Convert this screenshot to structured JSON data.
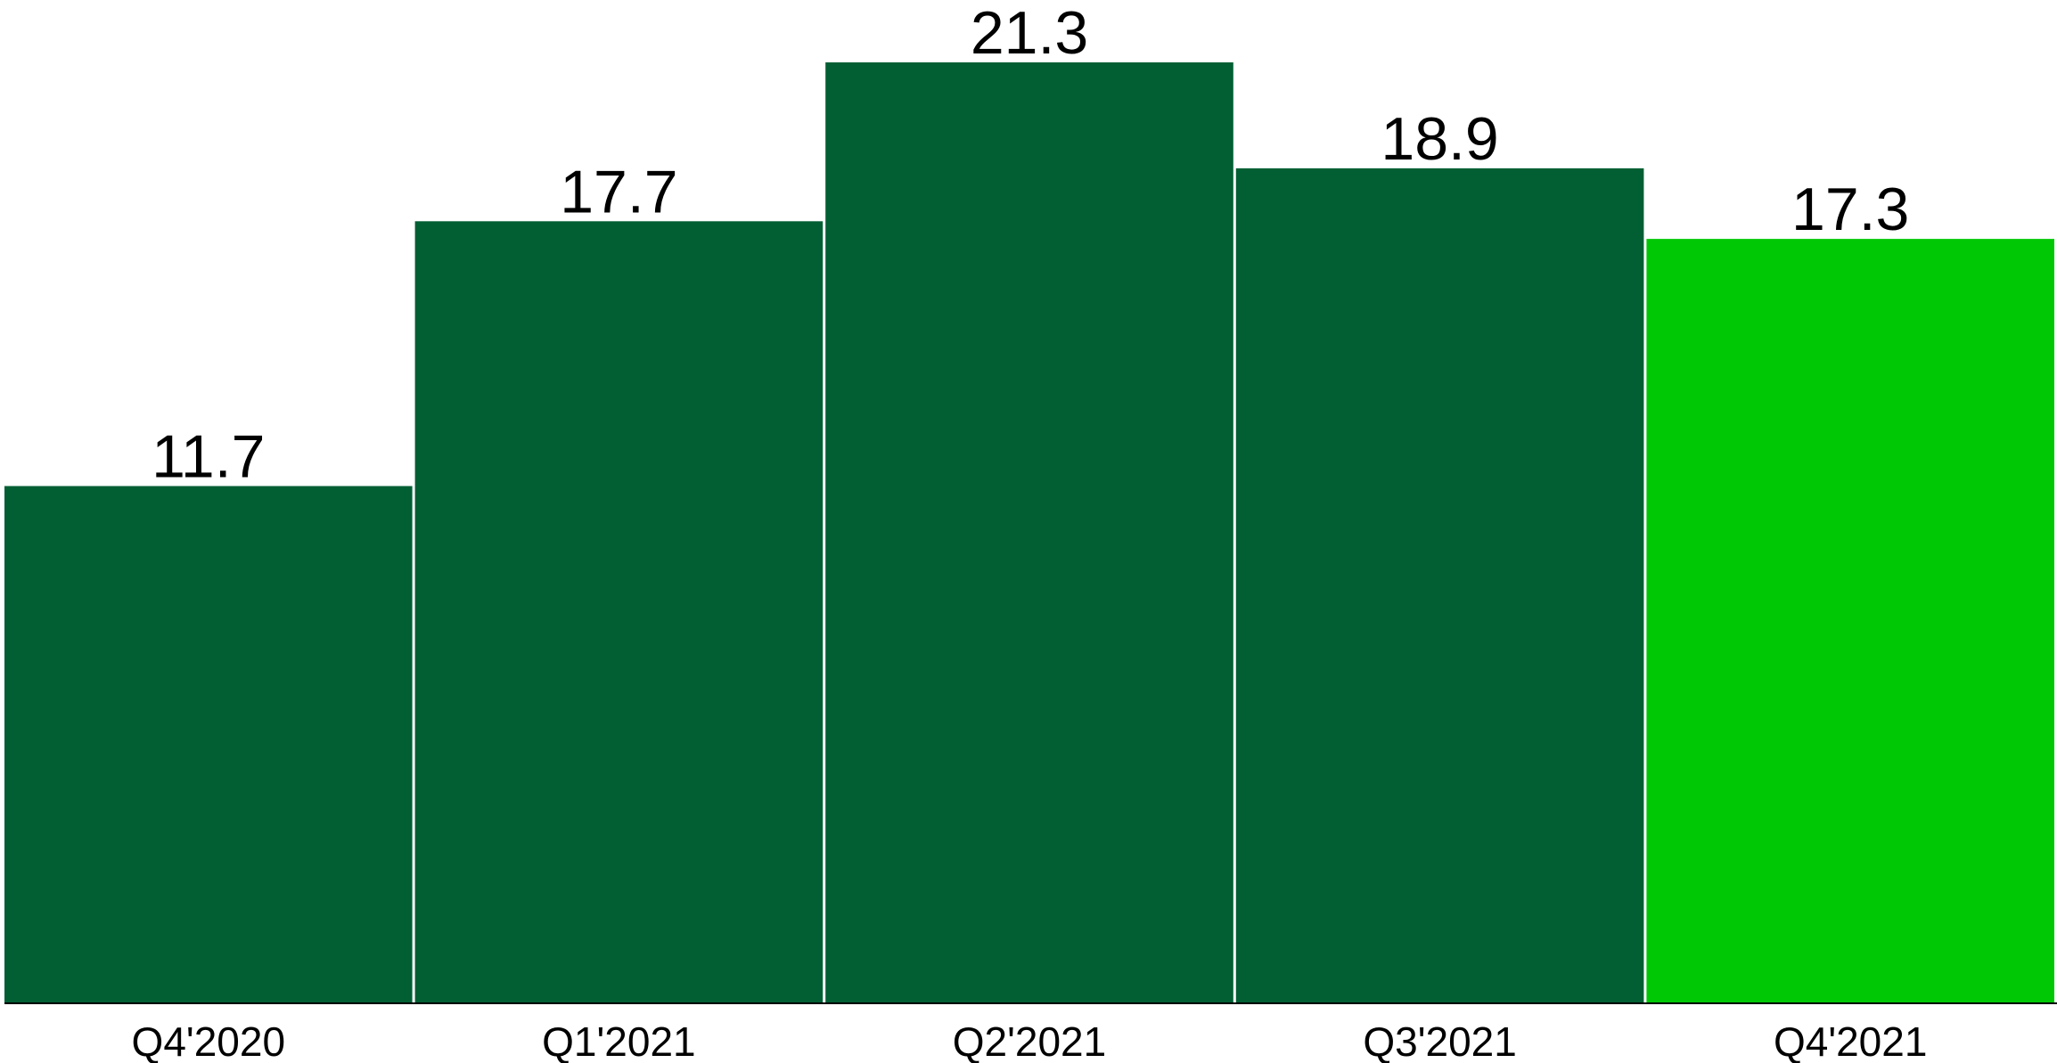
{
  "chart_data": {
    "type": "bar",
    "categories": [
      "Q4'2020",
      "Q1'2021",
      "Q2'2021",
      "Q3'2021",
      "Q4'2021"
    ],
    "values": [
      11.7,
      17.7,
      21.3,
      18.9,
      17.3
    ],
    "data_labels": [
      "11.7",
      "17.7",
      "21.3",
      "18.9",
      "17.3"
    ],
    "title": "",
    "xlabel": "",
    "ylabel": "",
    "ylim": [
      0,
      21.3
    ],
    "grid": false,
    "legend": "none",
    "colors": {
      "default_bar": "#025F34",
      "highlight_bar": "#00C805",
      "baseline": "#000000"
    },
    "highlight_index": 4
  }
}
